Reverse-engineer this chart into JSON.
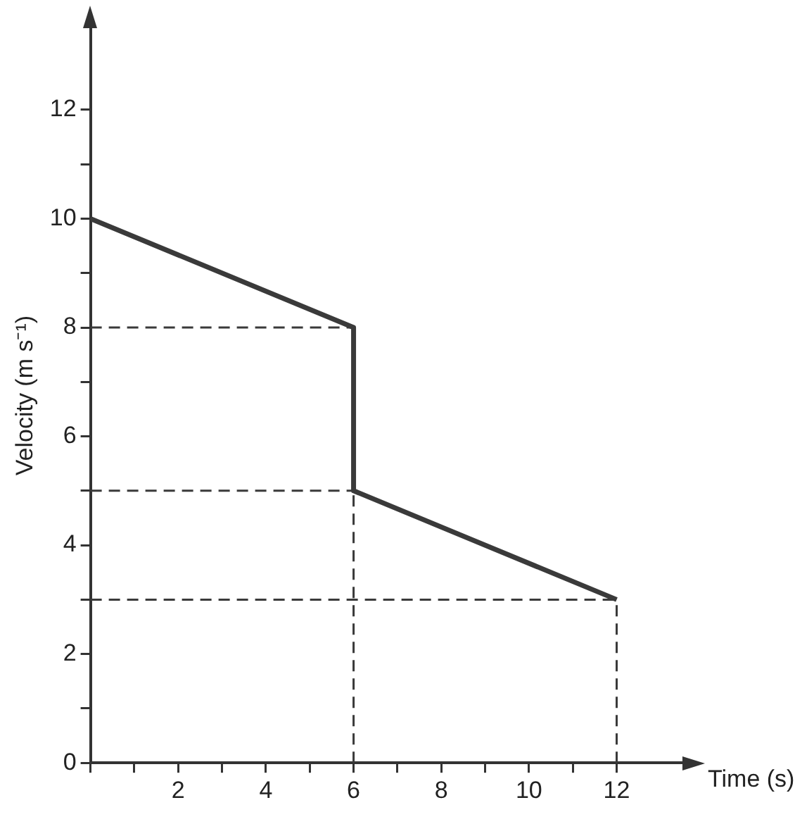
{
  "chart_data": {
    "type": "line",
    "xlabel": "Time (s)",
    "ylabel": "Velocity (m s⁻¹)",
    "xlim": [
      0,
      13.5
    ],
    "ylim": [
      0,
      13.5
    ],
    "xticks": [
      {
        "value": 0,
        "label": null
      },
      {
        "value": 1,
        "label": null
      },
      2,
      {
        "value": 3,
        "label": null
      },
      4,
      {
        "value": 5,
        "label": null
      },
      6,
      {
        "value": 7,
        "label": null
      },
      8,
      {
        "value": 9,
        "label": null
      },
      10,
      {
        "value": 11,
        "label": null
      },
      12
    ],
    "yticks": [
      0,
      {
        "value": 1,
        "label": null
      },
      2,
      {
        "value": 3,
        "label": null
      },
      4,
      {
        "value": 5,
        "label": null
      },
      6,
      {
        "value": 7,
        "label": null
      },
      8,
      {
        "value": 9,
        "label": null
      },
      10,
      {
        "value": 11,
        "label": null
      },
      12
    ],
    "grid": false,
    "legend": false,
    "marker": "none",
    "series": [
      {
        "color": "#3a3a3a",
        "x": [
          0,
          6,
          6,
          12
        ],
        "values": [
          10,
          8,
          5,
          3
        ],
        "line_style": "solid"
      },
      {
        "color": "#3a3a3a",
        "x": [
          0,
          6
        ],
        "values": [
          8,
          8
        ],
        "line_style": "dashed"
      },
      {
        "color": "#3a3a3a",
        "x": [
          0,
          6
        ],
        "values": [
          5,
          5
        ],
        "line_style": "dashed"
      },
      {
        "color": "#3a3a3a",
        "x": [
          0,
          12
        ],
        "values": [
          3,
          3
        ],
        "line_style": "dashed"
      },
      {
        "color": "#3a3a3a",
        "x": [
          6,
          6
        ],
        "values": [
          0,
          5
        ],
        "line_style": "dashed"
      },
      {
        "color": "#3a3a3a",
        "x": [
          12,
          12
        ],
        "values": [
          0,
          3
        ],
        "line_style": "dashed"
      }
    ]
  }
}
